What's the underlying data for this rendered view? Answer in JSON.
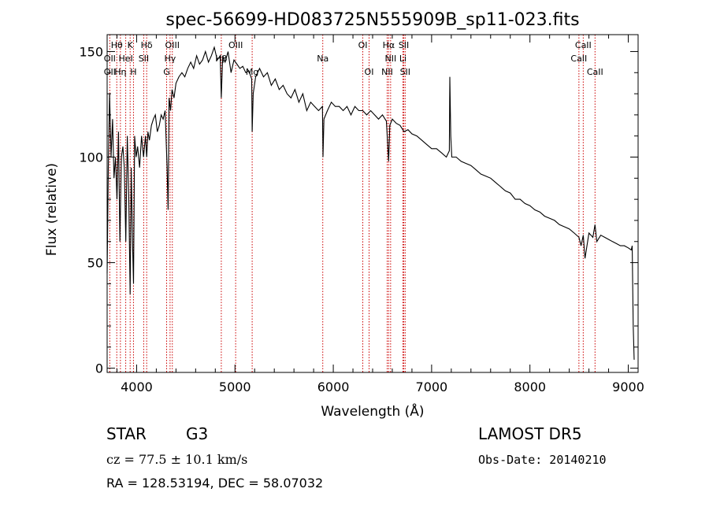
{
  "chart_data": {
    "type": "line",
    "title": "spec-56699-HD083725N555909B_sp11-023.fits",
    "xlabel": "Wavelength (Å)",
    "ylabel": "Flux (relative)",
    "xlim": [
      3700,
      9100
    ],
    "ylim": [
      -2,
      158
    ],
    "xticks": [
      4000,
      5000,
      6000,
      7000,
      8000,
      9000
    ],
    "yticks": [
      0,
      50,
      100,
      150
    ],
    "line_color": "#000000",
    "marker_color": "#cc0000",
    "series": [
      {
        "x": [
          3700,
          3712,
          3725,
          3740,
          3755,
          3770,
          3785,
          3800,
          3815,
          3830,
          3845,
          3860,
          3875,
          3890,
          3905,
          3920,
          3934,
          3945,
          3958,
          3968,
          3980,
          3995,
          4010,
          4030,
          4050,
          4070,
          4090,
          4102,
          4115,
          4130,
          4150,
          4170,
          4190,
          4210,
          4230,
          4250,
          4270,
          4290,
          4310,
          4320,
          4330,
          4345,
          4360,
          4380,
          4400,
          4430,
          4460,
          4490,
          4520,
          4550,
          4580,
          4610,
          4640,
          4670,
          4700,
          4730,
          4760,
          4790,
          4820,
          4850,
          4861,
          4875,
          4900,
          4930,
          4960,
          4990,
          5020,
          5050,
          5080,
          5110,
          5140,
          5170,
          5175,
          5185,
          5210,
          5250,
          5290,
          5330,
          5370,
          5410,
          5450,
          5490,
          5530,
          5570,
          5610,
          5650,
          5690,
          5730,
          5770,
          5810,
          5850,
          5890,
          5895,
          5905,
          5940,
          5980,
          6020,
          6060,
          6100,
          6140,
          6180,
          6220,
          6260,
          6300,
          6340,
          6380,
          6420,
          6460,
          6500,
          6540,
          6563,
          6575,
          6600,
          6640,
          6680,
          6720,
          6760,
          6800,
          6850,
          6900,
          6950,
          7000,
          7050,
          7100,
          7150,
          7180,
          7185,
          7195,
          7205,
          7250,
          7300,
          7350,
          7400,
          7450,
          7500,
          7550,
          7600,
          7650,
          7700,
          7750,
          7800,
          7850,
          7900,
          7950,
          8000,
          8050,
          8100,
          8150,
          8200,
          8250,
          8300,
          8350,
          8400,
          8450,
          8498,
          8520,
          8542,
          8560,
          8600,
          8640,
          8662,
          8680,
          8720,
          8760,
          8800,
          8840,
          8880,
          8920,
          8960,
          9000,
          9030,
          9040,
          9050,
          9060
        ],
        "y": [
          45,
          95,
          130,
          100,
          118,
          90,
          100,
          80,
          112,
          60,
          100,
          105,
          95,
          60,
          110,
          80,
          35,
          95,
          60,
          40,
          110,
          100,
          105,
          95,
          110,
          100,
          110,
          100,
          112,
          108,
          115,
          118,
          120,
          112,
          115,
          120,
          118,
          122,
          95,
          75,
          128,
          122,
          132,
          128,
          135,
          138,
          140,
          138,
          142,
          145,
          142,
          148,
          144,
          146,
          150,
          145,
          148,
          152,
          146,
          148,
          128,
          148,
          145,
          150,
          140,
          146,
          144,
          142,
          143,
          140,
          141,
          137,
          112,
          130,
          138,
          142,
          138,
          140,
          134,
          137,
          132,
          134,
          130,
          128,
          132,
          126,
          130,
          122,
          126,
          124,
          122,
          124,
          100,
          118,
          122,
          126,
          124,
          124,
          122,
          124,
          120,
          124,
          122,
          122,
          120,
          122,
          120,
          118,
          120,
          117,
          98,
          115,
          118,
          116,
          115,
          112,
          113,
          111,
          110,
          108,
          106,
          104,
          104,
          102,
          100,
          103,
          138,
          110,
          100,
          100,
          98,
          97,
          96,
          94,
          92,
          91,
          90,
          88,
          86,
          84,
          83,
          80,
          80,
          78,
          77,
          75,
          74,
          72,
          71,
          70,
          68,
          67,
          66,
          64,
          62,
          58,
          63,
          52,
          64,
          62,
          68,
          60,
          63,
          62,
          61,
          60,
          59,
          58,
          58,
          57,
          56,
          58,
          20,
          4
        ]
      }
    ],
    "line_labels": [
      {
        "text": "Hθ",
        "x": 3798,
        "row": 1
      },
      {
        "text": "K",
        "x": 3934,
        "row": 1
      },
      {
        "text": "Hδ",
        "x": 4102,
        "row": 1
      },
      {
        "text": "OIII",
        "x": 4363,
        "row": 1
      },
      {
        "text": "OIII",
        "x": 5007,
        "row": 1
      },
      {
        "text": "OI",
        "x": 6300,
        "row": 1
      },
      {
        "text": "Hα",
        "x": 6563,
        "row": 1
      },
      {
        "text": "SII",
        "x": 6717,
        "row": 1
      },
      {
        "text": "CaII",
        "x": 8542,
        "row": 1
      },
      {
        "text": "OII",
        "x": 3727,
        "row": 2
      },
      {
        "text": "HeI",
        "x": 3889,
        "row": 2
      },
      {
        "text": "SII",
        "x": 4072,
        "row": 2
      },
      {
        "text": "Hγ",
        "x": 4340,
        "row": 2
      },
      {
        "text": "Hβ",
        "x": 4861,
        "row": 2
      },
      {
        "text": "Na",
        "x": 5893,
        "row": 2
      },
      {
        "text": "NII",
        "x": 6583,
        "row": 2
      },
      {
        "text": "Li",
        "x": 6708,
        "row": 2
      },
      {
        "text": "CaII",
        "x": 8498,
        "row": 2
      },
      {
        "text": "OII",
        "x": 3727,
        "row": 3
      },
      {
        "text": "Hη",
        "x": 3835,
        "row": 3
      },
      {
        "text": "H",
        "x": 3968,
        "row": 3
      },
      {
        "text": "G",
        "x": 4305,
        "row": 3
      },
      {
        "text": "Mg",
        "x": 5175,
        "row": 3
      },
      {
        "text": "OI",
        "x": 6364,
        "row": 3
      },
      {
        "text": "NII",
        "x": 6548,
        "row": 3
      },
      {
        "text": "SII",
        "x": 6731,
        "row": 3
      },
      {
        "text": "CaII",
        "x": 8662,
        "row": 3
      }
    ]
  },
  "info": {
    "object_class": "STAR",
    "subclass": "G3",
    "release": "LAMOST DR5",
    "cz": "cz = 77.5 ± 10.1 km/s",
    "obs_date": "Obs-Date: 20140210",
    "coords": "RA = 128.53194, DEC =  58.07032"
  }
}
